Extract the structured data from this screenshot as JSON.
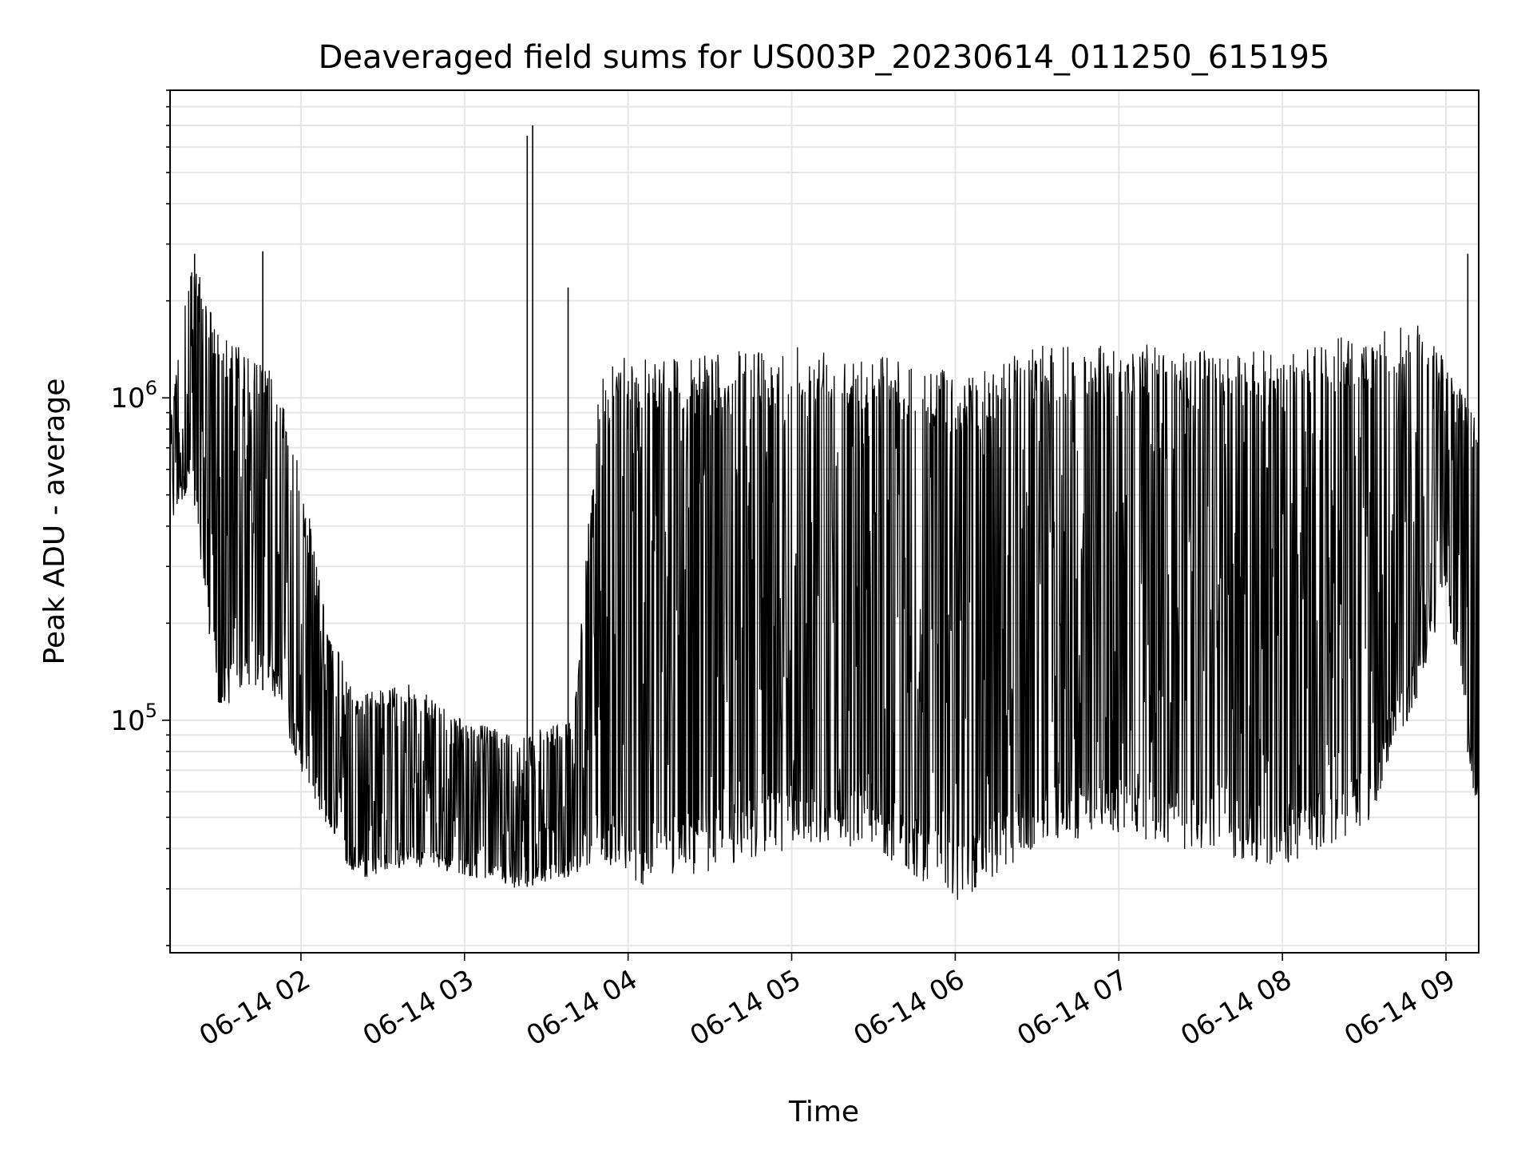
{
  "chart_data": {
    "type": "line",
    "title": "Deaveraged field sums for US003P_20230614_011250_615195",
    "xlabel": "Time",
    "ylabel": "Peak ADU - average",
    "yscale": "log",
    "ylim": [
      19000,
      9000000
    ],
    "xlim": [
      "2023-06-14T01:12",
      "2023-06-14T09:12"
    ],
    "grid": true,
    "line_color": "#000000",
    "x_ticks": [
      {
        "label": "06-14 02",
        "time": "2023-06-14T02:00"
      },
      {
        "label": "06-14 03",
        "time": "2023-06-14T03:00"
      },
      {
        "label": "06-14 04",
        "time": "2023-06-14T04:00"
      },
      {
        "label": "06-14 05",
        "time": "2023-06-14T05:00"
      },
      {
        "label": "06-14 06",
        "time": "2023-06-14T06:00"
      },
      {
        "label": "06-14 07",
        "time": "2023-06-14T07:00"
      },
      {
        "label": "06-14 08",
        "time": "2023-06-14T08:00"
      },
      {
        "label": "06-14 09",
        "time": "2023-06-14T09:00"
      }
    ],
    "y_ticks": [
      {
        "label": "10",
        "exponent": "5",
        "value": 100000
      },
      {
        "label": "10",
        "exponent": "6",
        "value": 1000000
      }
    ],
    "series_envelope": [
      {
        "time": "2023-06-14T01:12",
        "low": 400000,
        "high": 900000
      },
      {
        "time": "2023-06-14T01:20",
        "low": 550000,
        "high": 2800000
      },
      {
        "time": "2023-06-14T01:30",
        "low": 100000,
        "high": 1600000
      },
      {
        "time": "2023-06-14T01:40",
        "low": 130000,
        "high": 1400000
      },
      {
        "time": "2023-06-14T01:50",
        "low": 120000,
        "high": 1200000
      },
      {
        "time": "2023-06-14T02:00",
        "low": 70000,
        "high": 600000
      },
      {
        "time": "2023-06-14T02:10",
        "low": 45000,
        "high": 200000
      },
      {
        "time": "2023-06-14T02:20",
        "low": 32000,
        "high": 120000
      },
      {
        "time": "2023-06-14T02:40",
        "low": 35000,
        "high": 130000
      },
      {
        "time": "2023-06-14T03:00",
        "low": 33000,
        "high": 100000
      },
      {
        "time": "2023-06-14T03:20",
        "low": 30000,
        "high": 90000
      },
      {
        "time": "2023-06-14T03:40",
        "low": 33000,
        "high": 100000
      },
      {
        "time": "2023-06-14T03:50",
        "low": 38000,
        "high": 1300000
      },
      {
        "time": "2023-06-14T04:00",
        "low": 30000,
        "high": 1400000
      },
      {
        "time": "2023-06-14T04:30",
        "low": 34000,
        "high": 1350000
      },
      {
        "time": "2023-06-14T05:00",
        "low": 40000,
        "high": 1500000
      },
      {
        "time": "2023-06-14T05:30",
        "low": 40000,
        "high": 1400000
      },
      {
        "time": "2023-06-14T06:00",
        "low": 27000,
        "high": 1200000
      },
      {
        "time": "2023-06-14T06:30",
        "low": 40000,
        "high": 1450000
      },
      {
        "time": "2023-06-14T07:00",
        "low": 45000,
        "high": 1500000
      },
      {
        "time": "2023-06-14T07:30",
        "low": 38000,
        "high": 1400000
      },
      {
        "time": "2023-06-14T08:00",
        "low": 35000,
        "high": 1400000
      },
      {
        "time": "2023-06-14T08:30",
        "low": 45000,
        "high": 1600000
      },
      {
        "time": "2023-06-14T08:50",
        "low": 120000,
        "high": 1700000
      },
      {
        "time": "2023-06-14T09:00",
        "low": 250000,
        "high": 1300000
      },
      {
        "time": "2023-06-14T09:12",
        "low": 45000,
        "high": 900000
      }
    ],
    "notable_points": [
      {
        "time": "2023-06-14T01:21",
        "value": 2800000
      },
      {
        "time": "2023-06-14T01:46",
        "value": 2850000
      },
      {
        "time": "2023-06-14T03:23",
        "value": 6500000
      },
      {
        "time": "2023-06-14T03:25",
        "value": 7000000
      },
      {
        "time": "2023-06-14T03:38",
        "value": 2200000
      },
      {
        "time": "2023-06-14T09:08",
        "value": 2800000
      }
    ]
  }
}
